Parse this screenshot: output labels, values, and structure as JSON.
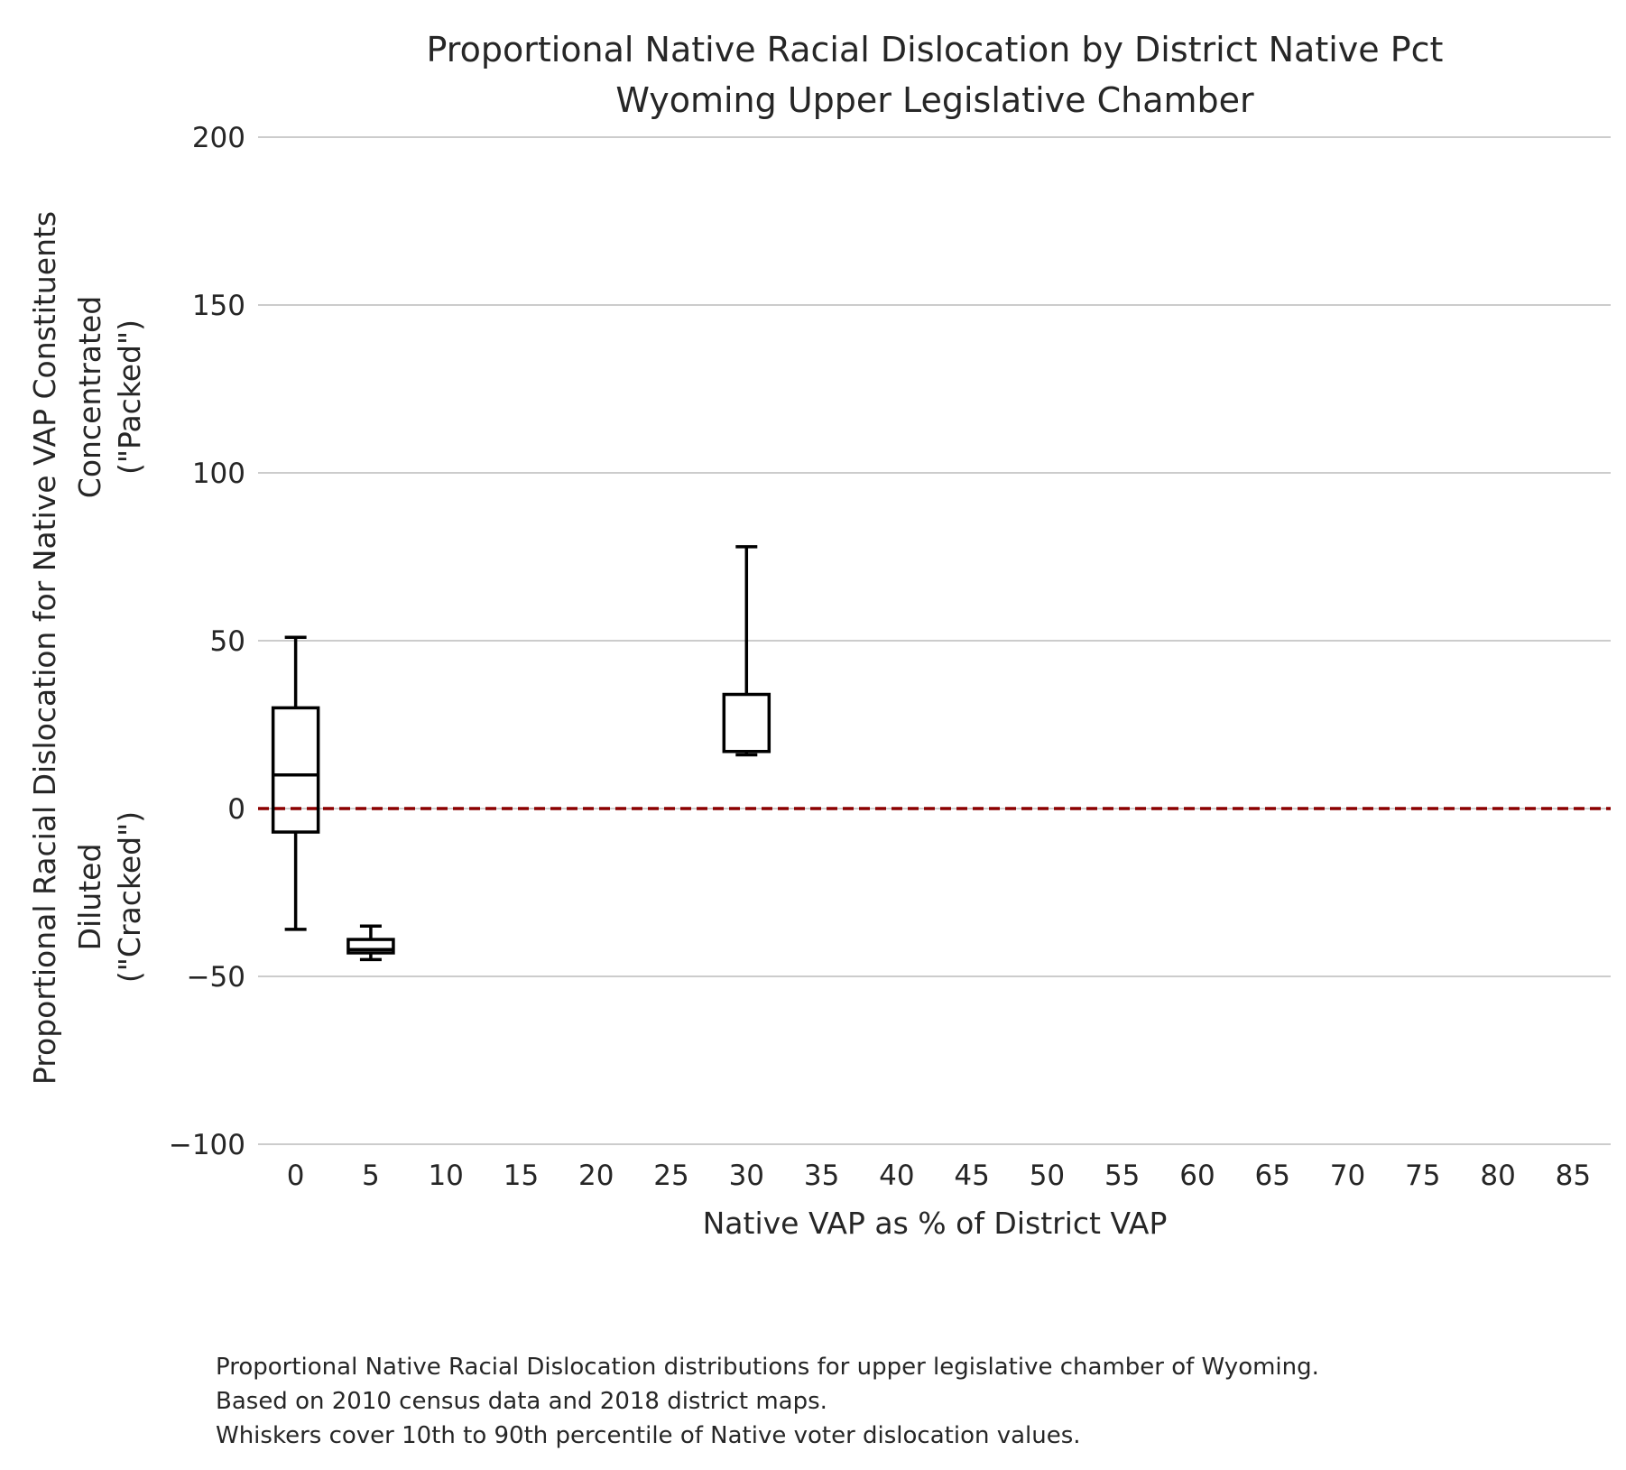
{
  "chart_data": {
    "type": "box",
    "title": [
      "Proportional Native Racial Dislocation by District Native Pct",
      "Wyoming Upper Legislative Chamber"
    ],
    "xlabel": "Native VAP as % of District VAP",
    "ylabel": [
      "Proportional Racial Dislocation for Native VAP Constituents",
      "Concentrated",
      "(\"Packed\")",
      "Diluted",
      "(\"Cracked\")"
    ],
    "x_ticks": [
      "0",
      "5",
      "10",
      "15",
      "20",
      "25",
      "30",
      "35",
      "40",
      "45",
      "50",
      "55",
      "60",
      "65",
      "70",
      "75",
      "80",
      "85"
    ],
    "y_ticks": [
      "200",
      "150",
      "100",
      "50",
      "0",
      "−50",
      "−100"
    ],
    "xlim": [
      -2.5,
      87.5
    ],
    "ylim": [
      -100,
      200
    ],
    "grid": true,
    "reference_line": {
      "y": 0,
      "color": "#8b0000",
      "style": "dashed"
    },
    "boxes": [
      {
        "x": 0,
        "whisker_low": -36,
        "q1": -7,
        "median": 10,
        "q3": 30,
        "whisker_high": 51
      },
      {
        "x": 5,
        "whisker_low": -45,
        "q1": -43,
        "median": -42,
        "q3": -39,
        "whisker_high": -35
      },
      {
        "x": 30,
        "whisker_low": 16,
        "q1": 17,
        "median": 17,
        "q3": 34,
        "whisker_high": 78
      }
    ],
    "caption": [
      "Proportional Native Racial Dislocation distributions for upper legislative chamber of Wyoming.",
      "Based on 2010 census data and 2018 district maps.",
      "Whiskers cover 10th to 90th percentile of Native voter dislocation values."
    ]
  },
  "colors": {
    "grid": "#cccccc",
    "box_stroke": "#000000",
    "reference_line": "#8b0000",
    "text": "#262626"
  }
}
